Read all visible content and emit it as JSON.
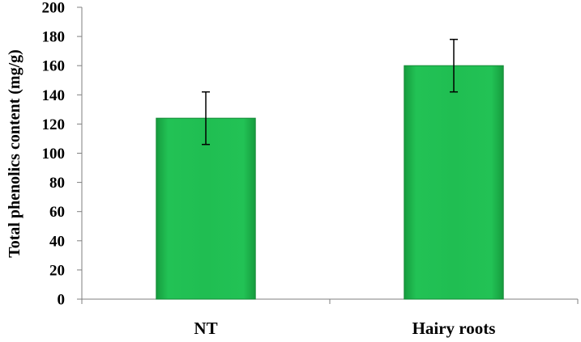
{
  "chart_data": {
    "type": "bar",
    "categories": [
      "NT",
      "Hairy roots"
    ],
    "values": [
      124,
      160
    ],
    "errors": [
      18,
      18
    ],
    "title": "",
    "xlabel": "",
    "ylabel": "Total phenolics content  (mg/g)",
    "ylim": [
      0,
      200
    ],
    "yticks": [
      "0",
      "20",
      "40",
      "60",
      "80",
      "100",
      "120",
      "140",
      "160",
      "180",
      "200"
    ],
    "grid": false,
    "legend": "none",
    "bar_color": "#1fba4e",
    "bar_edge_color": "#168a38"
  }
}
